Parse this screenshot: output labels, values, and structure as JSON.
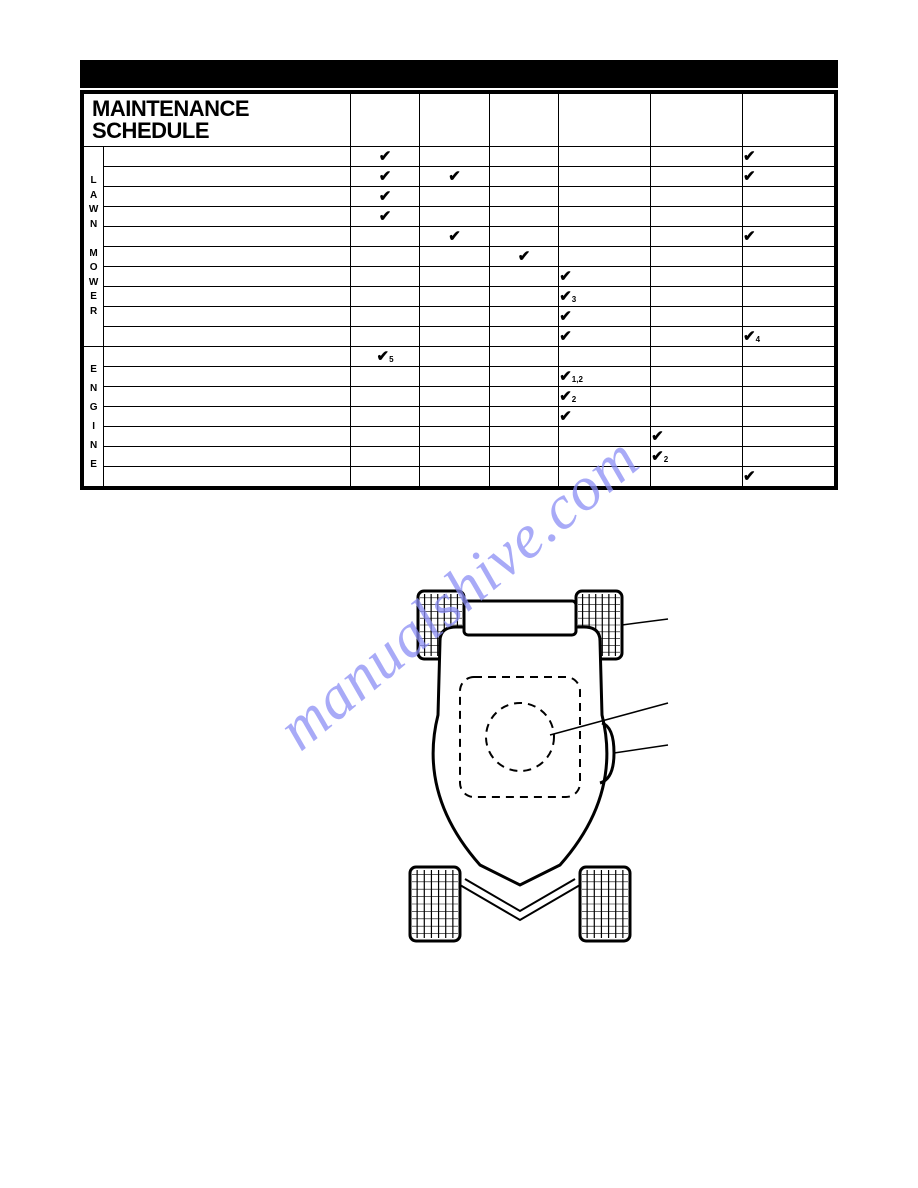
{
  "title": "MAINTENANCE SCHEDULE",
  "group_labels": {
    "mower": [
      "L",
      "A",
      "W",
      "N",
      "",
      "M",
      "O",
      "W",
      "E",
      "R"
    ],
    "engine": [
      "E",
      "N",
      "G",
      "I",
      "N",
      "E"
    ]
  },
  "check_glyph": "✔",
  "watermark": "manualshive.com",
  "rows": [
    {
      "c": [
        true,
        false,
        false,
        false,
        false,
        true
      ],
      "sub": [
        "",
        "",
        "",
        "",
        "",
        ""
      ]
    },
    {
      "c": [
        true,
        true,
        false,
        false,
        false,
        true
      ],
      "sub": [
        "",
        "",
        "",
        "",
        "",
        ""
      ]
    },
    {
      "c": [
        true,
        false,
        false,
        false,
        false,
        false
      ],
      "sub": [
        "",
        "",
        "",
        "",
        "",
        ""
      ]
    },
    {
      "c": [
        true,
        false,
        false,
        false,
        false,
        false
      ],
      "sub": [
        "",
        "",
        "",
        "",
        "",
        ""
      ]
    },
    {
      "c": [
        false,
        true,
        false,
        false,
        false,
        true
      ],
      "sub": [
        "",
        "",
        "",
        "",
        "",
        ""
      ]
    },
    {
      "c": [
        false,
        false,
        true,
        false,
        false,
        false
      ],
      "sub": [
        "",
        "",
        "",
        "",
        "",
        ""
      ]
    },
    {
      "c": [
        false,
        false,
        false,
        true,
        false,
        false
      ],
      "sub": [
        "",
        "",
        "",
        "",
        "",
        ""
      ]
    },
    {
      "c": [
        false,
        false,
        false,
        true,
        false,
        false
      ],
      "sub": [
        "",
        "",
        "",
        "3",
        "",
        ""
      ]
    },
    {
      "c": [
        false,
        false,
        false,
        true,
        false,
        false
      ],
      "sub": [
        "",
        "",
        "",
        "",
        "",
        ""
      ]
    },
    {
      "c": [
        false,
        false,
        false,
        true,
        false,
        true
      ],
      "sub": [
        "",
        "",
        "",
        "",
        "",
        "4"
      ]
    },
    {
      "c": [
        true,
        false,
        false,
        false,
        false,
        false
      ],
      "sub": [
        "5",
        "",
        "",
        "",
        "",
        ""
      ]
    },
    {
      "c": [
        false,
        false,
        false,
        true,
        false,
        false
      ],
      "sub": [
        "",
        "",
        "",
        "1,2",
        "",
        ""
      ]
    },
    {
      "c": [
        false,
        false,
        false,
        true,
        false,
        false
      ],
      "sub": [
        "",
        "",
        "",
        "2",
        "",
        ""
      ]
    },
    {
      "c": [
        false,
        false,
        false,
        true,
        false,
        false
      ],
      "sub": [
        "",
        "",
        "",
        "",
        "",
        ""
      ]
    },
    {
      "c": [
        false,
        false,
        false,
        false,
        true,
        false
      ],
      "sub": [
        "",
        "",
        "",
        "",
        "",
        ""
      ]
    },
    {
      "c": [
        false,
        false,
        false,
        false,
        true,
        false
      ],
      "sub": [
        "",
        "",
        "",
        "",
        "2",
        ""
      ]
    },
    {
      "c": [
        false,
        false,
        false,
        false,
        false,
        true
      ],
      "sub": [
        "",
        "",
        "",
        "",
        "",
        ""
      ]
    }
  ],
  "diagram": {
    "stroke": "#000000",
    "strokeWidth": 3,
    "wheelFill": "#ffffff",
    "dashArray": "8,6"
  }
}
